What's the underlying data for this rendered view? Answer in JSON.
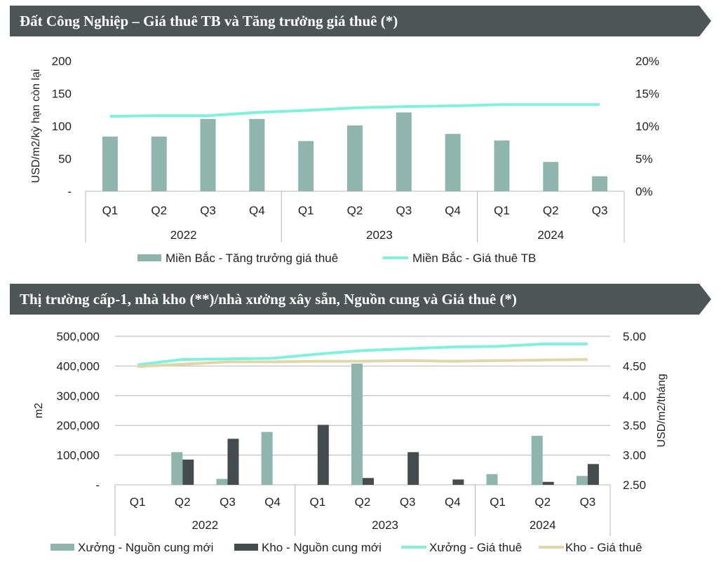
{
  "charts": {
    "c1_title": "Đất Công Nghiệp – Giá thuê TB và Tăng trưởng giá thuê (*)",
    "c2_title": "Thị trường cấp-1, nhà kho (**)/nhà xưởng xây sẵn, Nguồn cung và Giá thuê (*)"
  },
  "colors": {
    "banner": "#4d5557",
    "bar_teal": "#8fb5ac",
    "bar_dark": "#454c4e",
    "line_mint": "#7ef2dc",
    "line_beige": "#e2d6a8",
    "axis": "#b5b5b5"
  },
  "chart_data": [
    {
      "type": "bar",
      "title": "Đất Công Nghiệp – Giá thuê TB và Tăng trưởng giá thuê (*)",
      "categories": [
        "Q1",
        "Q2",
        "Q3",
        "Q4",
        "Q1",
        "Q2",
        "Q3",
        "Q4",
        "Q1",
        "Q2",
        "Q3"
      ],
      "groups": [
        {
          "label": "2022",
          "count": 4
        },
        {
          "label": "2023",
          "count": 4
        },
        {
          "label": "2024",
          "count": 3
        }
      ],
      "series": [
        {
          "name": "Miền Bắc - Tăng trưởng giá thuê",
          "kind": "bar",
          "axis": "left",
          "values": [
            84,
            84,
            111,
            111,
            77,
            101,
            121,
            88,
            78,
            45,
            23
          ]
        },
        {
          "name": "Miền Bắc - Giá thuê TB",
          "kind": "line",
          "axis": "right",
          "values": [
            11.5,
            11.6,
            11.6,
            12.1,
            12.4,
            12.8,
            13.0,
            13.1,
            13.3,
            13.3,
            13.3
          ]
        }
      ],
      "ylabel": "USD/m2/kỳ hạn còn lại",
      "ylim": [
        0,
        200
      ],
      "yticks": [
        "-",
        "50",
        "100",
        "150",
        "200"
      ],
      "y2lim": [
        0,
        20
      ],
      "y2ticks": [
        "0%",
        "5%",
        "10%",
        "15%",
        "20%"
      ],
      "legend": "bottom"
    },
    {
      "type": "bar",
      "title": "Thị trường cấp-1, nhà kho (**)/nhà xưởng xây sẵn, Nguồn cung và Giá thuê (*)",
      "categories": [
        "Q1",
        "Q2",
        "Q3",
        "Q4",
        "Q1",
        "Q2",
        "Q3",
        "Q4",
        "Q1",
        "Q2",
        "Q3"
      ],
      "groups": [
        {
          "label": "2022",
          "count": 4
        },
        {
          "label": "2023",
          "count": 4
        },
        {
          "label": "2024",
          "count": 3
        }
      ],
      "series": [
        {
          "name": "Xưởng - Nguồn cung mới",
          "kind": "bar",
          "axis": "left",
          "values": [
            0,
            110000,
            20000,
            178000,
            0,
            408000,
            0,
            0,
            36000,
            165000,
            30000
          ]
        },
        {
          "name": "Kho - Nguồn cung mới",
          "kind": "bar",
          "axis": "left",
          "values": [
            0,
            85000,
            155000,
            0,
            202000,
            23000,
            110000,
            18000,
            0,
            10000,
            70000
          ]
        },
        {
          "name": "Xưởng - Giá thuê",
          "kind": "line",
          "axis": "right",
          "values": [
            4.52,
            4.61,
            4.62,
            4.63,
            4.7,
            4.76,
            4.79,
            4.82,
            4.83,
            4.87,
            4.87
          ]
        },
        {
          "name": "Kho - Giá thuê",
          "kind": "line",
          "axis": "right",
          "values": [
            4.49,
            4.53,
            4.57,
            4.57,
            4.58,
            4.58,
            4.59,
            4.58,
            4.59,
            4.6,
            4.61
          ]
        }
      ],
      "ylabel": "m2",
      "ylim": [
        0,
        500000
      ],
      "yticks": [
        "-",
        "100,000",
        "200,000",
        "300,000",
        "400,000",
        "500,000"
      ],
      "y2label": "USD/m2/tháng",
      "y2lim": [
        2.5,
        5.0
      ],
      "y2ticks": [
        "2.50",
        "3.00",
        "3.50",
        "4.00",
        "4.50",
        "5.00"
      ],
      "legend": "bottom"
    }
  ]
}
